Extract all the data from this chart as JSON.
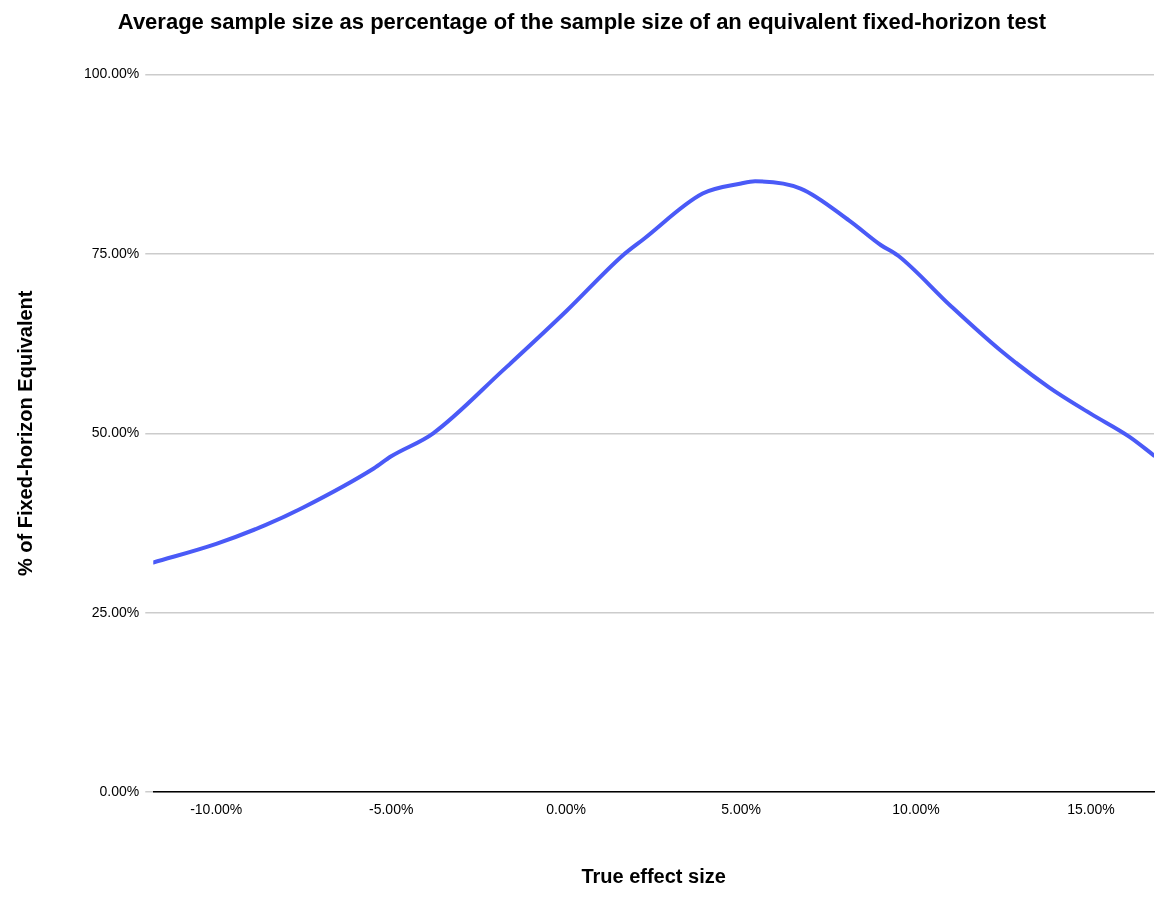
{
  "chart_data": {
    "type": "line",
    "title": "Average sample size as percentage of the sample size of an equivalent fixed-horizon test",
    "xlabel": "True effect size",
    "ylabel": "% of Fixed-horizon Equivalent",
    "x": [
      -11.8,
      -10,
      -8.6,
      -7.5,
      -5.5,
      -5,
      -3.8,
      -1.8,
      0,
      1.6,
      2.2,
      3.9,
      5,
      5.4,
      6.7,
      8.1,
      9,
      9.5,
      11,
      12.4,
      13.8,
      15,
      16.1,
      16.8
    ],
    "series": [
      {
        "color": "#4a5af7",
        "values": [
          32.0,
          34.6,
          37.2,
          39.7,
          45.1,
          46.8,
          50.0,
          58.8,
          67.0,
          74.7,
          77.0,
          83.4,
          84.8,
          85.1,
          84.1,
          79.6,
          76.2,
          74.7,
          67.7,
          61.6,
          56.4,
          52.7,
          49.5,
          46.9
        ]
      }
    ],
    "xlim": [
      -11.8,
      16.8
    ],
    "ylim": [
      0,
      100
    ],
    "xticks": [
      {
        "value": -10,
        "label": "-10.00%"
      },
      {
        "value": -5,
        "label": "-5.00%"
      },
      {
        "value": 0,
        "label": "0.00%"
      },
      {
        "value": 5,
        "label": "5.00%"
      },
      {
        "value": 10,
        "label": "10.00%"
      },
      {
        "value": 15,
        "label": "15.00%"
      }
    ],
    "yticks": [
      {
        "value": 0,
        "label": "0.00%"
      },
      {
        "value": 25,
        "label": "25.00%"
      },
      {
        "value": 50,
        "label": "50.00%"
      },
      {
        "value": 75,
        "label": "75.00%"
      },
      {
        "value": 100,
        "label": "100.00%"
      }
    ],
    "grid": "y",
    "legend": false,
    "marker": "none",
    "line_style": "solid"
  }
}
